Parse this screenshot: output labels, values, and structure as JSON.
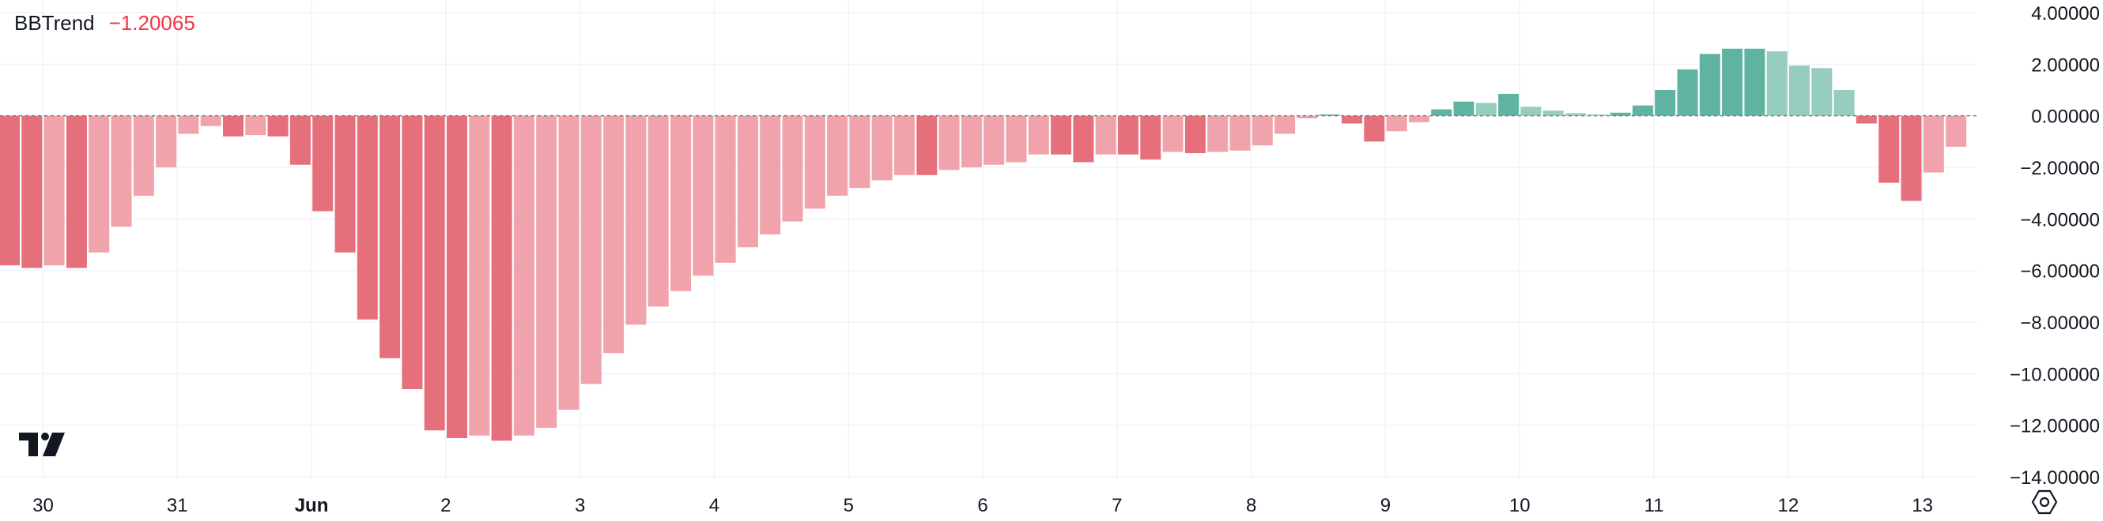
{
  "legend": {
    "name": "BBTrend",
    "value": "−1.20065"
  },
  "icons": {
    "logo": "tradingview-logo-icon",
    "settings": "chart-settings-icon"
  },
  "colors": {
    "red_strong": "#e5707c",
    "red_light": "#f0a3aa",
    "green_strong": "#5fb3a1",
    "green_light": "#96cdbf",
    "grid": "#f0f3fa",
    "axis_text": "#131722",
    "zero_line": "#787b86"
  },
  "chart_data": {
    "type": "bar",
    "indicator": "BBTrend",
    "title": "",
    "ylim": [
      -14,
      4
    ],
    "y_ticks": [
      4,
      2,
      0,
      -2,
      -4,
      -6,
      -8,
      -10,
      -12,
      -14
    ],
    "y_tick_labels": [
      "4.00000",
      "2.00000",
      "0.00000",
      "−2.00000",
      "−4.00000",
      "−6.00000",
      "−8.00000",
      "−10.00000",
      "−12.00000",
      "−14.00000"
    ],
    "x_labels": [
      {
        "label": "30",
        "bar": 1.5,
        "bold": false
      },
      {
        "label": "31",
        "bar": 7.5,
        "bold": false
      },
      {
        "label": "Jun",
        "bar": 13.5,
        "bold": true
      },
      {
        "label": "2",
        "bar": 19.5,
        "bold": false
      },
      {
        "label": "3",
        "bar": 25.5,
        "bold": false
      },
      {
        "label": "4",
        "bar": 31.5,
        "bold": false
      },
      {
        "label": "5",
        "bar": 37.5,
        "bold": false
      },
      {
        "label": "6",
        "bar": 43.5,
        "bold": false
      },
      {
        "label": "7",
        "bar": 49.5,
        "bold": false
      },
      {
        "label": "8",
        "bar": 55.5,
        "bold": false
      },
      {
        "label": "9",
        "bar": 61.5,
        "bold": false
      },
      {
        "label": "10",
        "bar": 67.5,
        "bold": false
      },
      {
        "label": "11",
        "bar": 73.5,
        "bold": false
      },
      {
        "label": "12",
        "bar": 79.5,
        "bold": false
      },
      {
        "label": "13",
        "bar": 85.5,
        "bold": false
      }
    ],
    "grid": true,
    "values": [
      -5.8,
      -5.9,
      -5.8,
      -5.9,
      -5.3,
      -4.3,
      -3.1,
      -2.0,
      -0.7,
      -0.4,
      -0.8,
      -0.75,
      -0.8,
      -1.9,
      -3.7,
      -5.3,
      -7.9,
      -9.4,
      -10.6,
      -12.2,
      -12.5,
      -12.4,
      -12.6,
      -12.4,
      -12.1,
      -11.4,
      -10.4,
      -9.2,
      -8.1,
      -7.4,
      -6.8,
      -6.2,
      -5.7,
      -5.1,
      -4.6,
      -4.1,
      -3.6,
      -3.1,
      -2.8,
      -2.5,
      -2.3,
      -2.3,
      -2.1,
      -2.0,
      -1.9,
      -1.8,
      -1.5,
      -1.5,
      -1.8,
      -1.5,
      -1.5,
      -1.7,
      -1.4,
      -1.45,
      -1.4,
      -1.35,
      -1.15,
      -0.7,
      -0.1,
      0.05,
      -0.3,
      -1.0,
      -0.6,
      -0.25,
      0.25,
      0.55,
      0.5,
      0.85,
      0.35,
      0.2,
      0.1,
      0.05,
      0.12,
      0.4,
      1.0,
      1.8,
      2.4,
      2.6,
      2.6,
      2.5,
      1.95,
      1.85,
      1.0,
      -0.3,
      -2.6,
      -3.3,
      -2.2,
      -1.2
    ]
  },
  "axis_labels": {
    "x": [
      "30",
      "31",
      "Jun",
      "2",
      "3",
      "4",
      "5",
      "6",
      "7",
      "8",
      "9",
      "10",
      "11",
      "12",
      "13"
    ],
    "y": [
      "4.00000",
      "2.00000",
      "0.00000",
      "−2.00000",
      "−4.00000",
      "−6.00000",
      "−8.00000",
      "−10.00000",
      "−12.00000",
      "−14.00000"
    ]
  }
}
